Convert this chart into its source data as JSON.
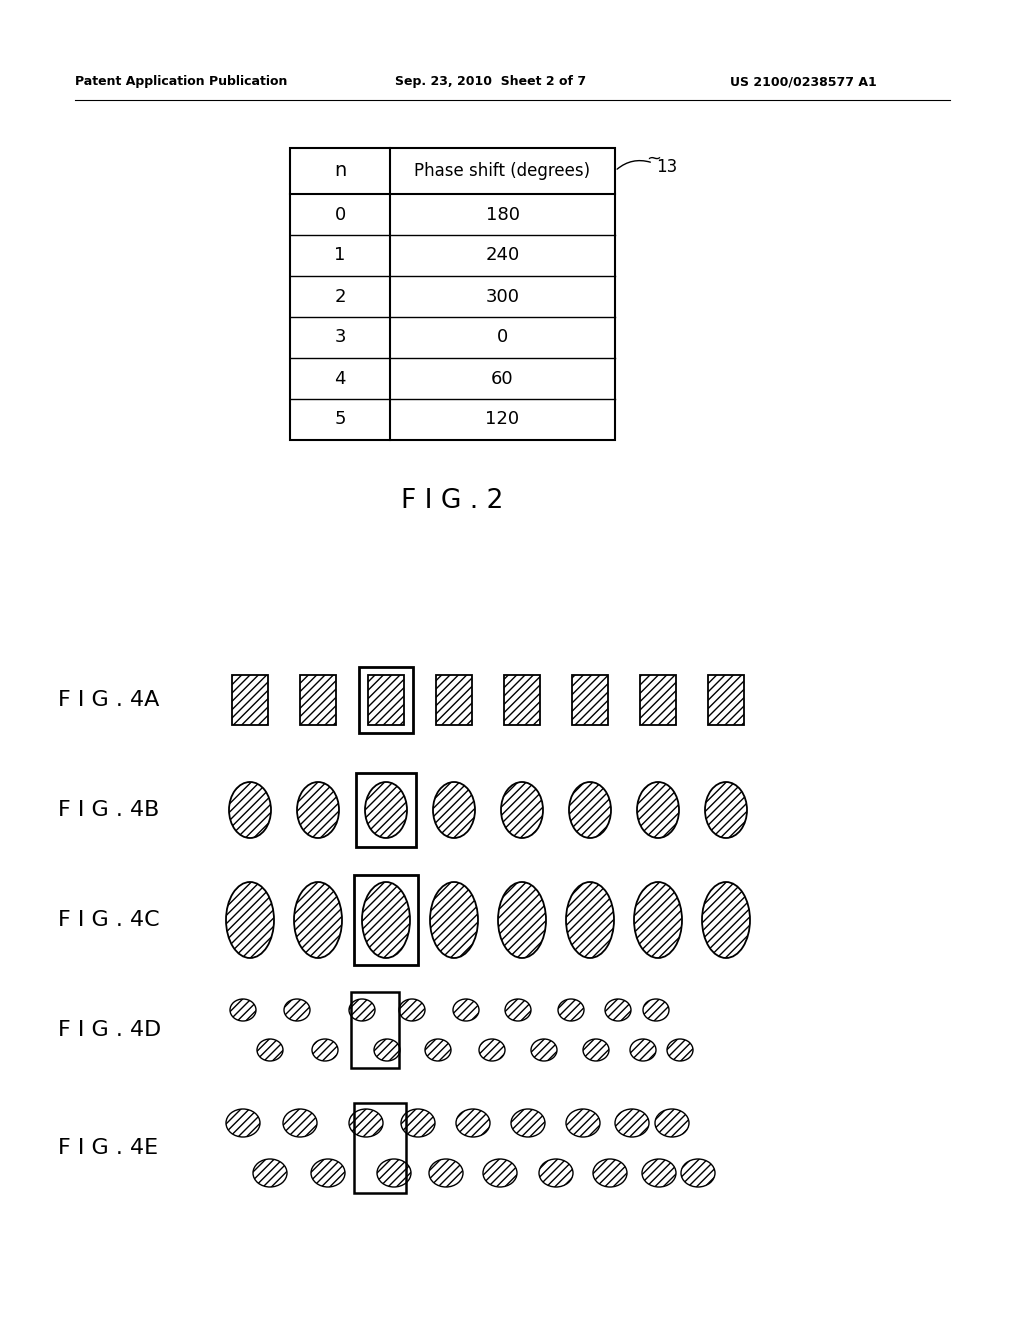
{
  "header_left": "Patent Application Publication",
  "header_mid": "Sep. 23, 2010  Sheet 2 of 7",
  "header_right": "US 2100/0238577 A1",
  "table_title_col1": "n",
  "table_title_col2": "Phase shift (degrees)",
  "table_label": "13",
  "table_rows": [
    [
      "0",
      "180"
    ],
    [
      "1",
      "240"
    ],
    [
      "2",
      "300"
    ],
    [
      "3",
      "0"
    ],
    [
      "4",
      "60"
    ],
    [
      "5",
      "120"
    ]
  ],
  "fig2_label": "F I G . 2",
  "fig_labels": [
    "F I G . 4A",
    "F I G . 4B",
    "F I G . 4C",
    "F I G . 4D",
    "F I G . 4E"
  ],
  "background_color": "#ffffff"
}
